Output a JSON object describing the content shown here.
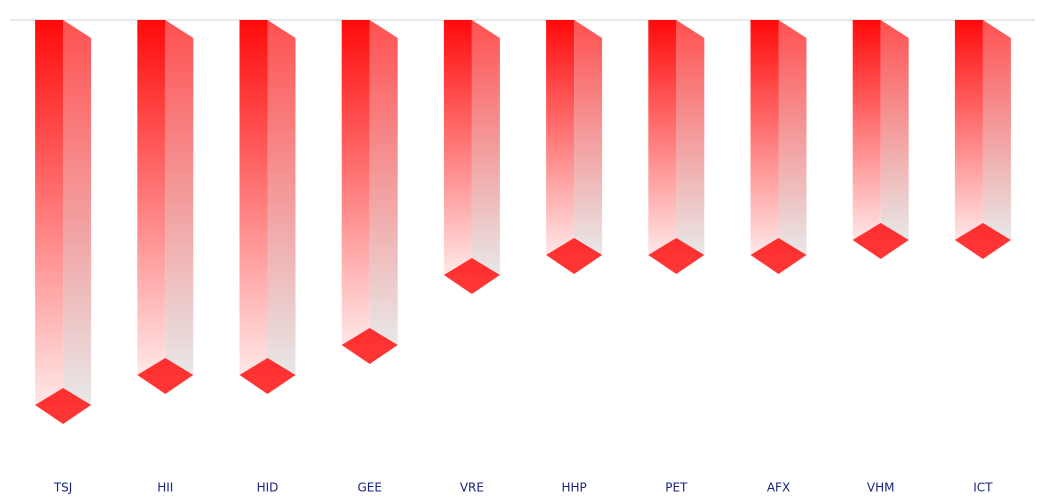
{
  "chart_data": {
    "type": "bar3d",
    "categories": [
      "TSJ",
      "HII",
      "HID",
      "GEE",
      "VRE",
      "HHP",
      "PET",
      "AFX",
      "VHM",
      "ICT"
    ],
    "values": [
      -7.7,
      -7.1,
      -7.1,
      -6.5,
      -5.1,
      -4.7,
      -4.7,
      -4.7,
      -4.4,
      -4.4
    ],
    "color": "#ff1010",
    "ylim": [
      -9,
      0
    ]
  }
}
